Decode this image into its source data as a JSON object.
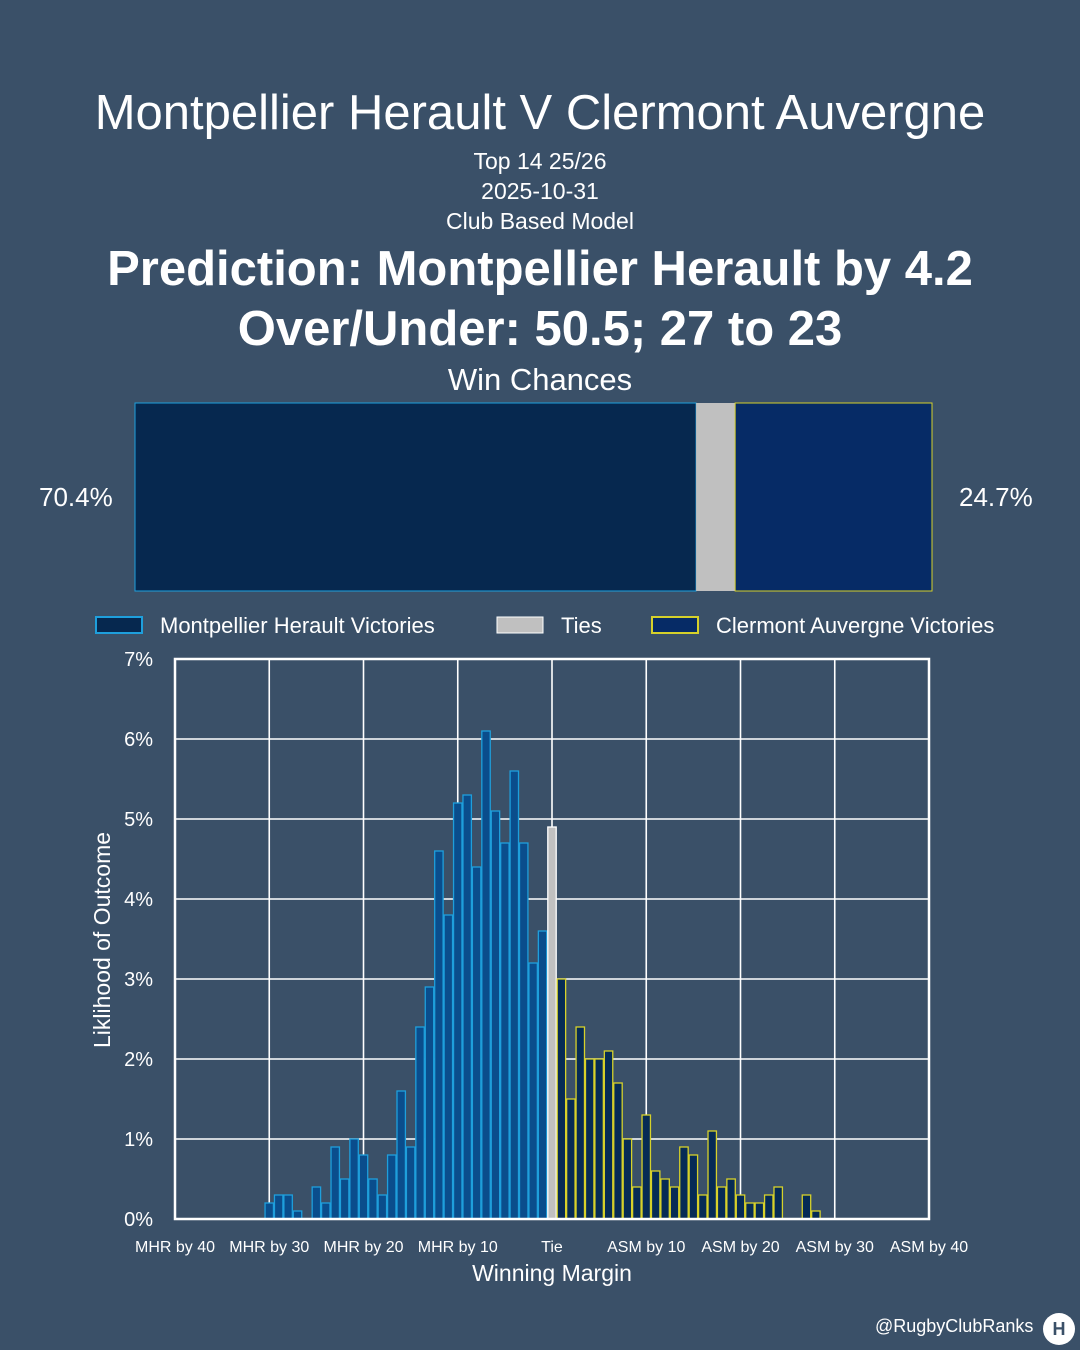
{
  "header": {
    "title": "Montpellier Herault V Clermont Auvergne",
    "competition": "Top 14 25/26",
    "date": "2025-10-31",
    "model": "Club Based Model",
    "prediction": "Prediction: Montpellier Herault by 4.2",
    "over_under": "Over/Under: 50.5; 27 to 23"
  },
  "win_chances": {
    "title": "Win Chances",
    "home_pct_label": "70.4%",
    "away_pct_label": "24.7%",
    "home": 70.4,
    "tie": 4.9,
    "away": 24.7
  },
  "colors": {
    "background": "#3a5068",
    "home_fill": "#06284f",
    "home_hist": "#0a4d8c",
    "home_edge": "#1e9fdc",
    "tie": "#c0c0c0",
    "away_fill": "#062b66",
    "away_hist": "#062b55",
    "away_edge": "#d6d12a"
  },
  "legend": {
    "home": "Montpellier Herault Victories",
    "tie": "Ties",
    "away": "Clermont Auvergne Victories"
  },
  "chart_data": {
    "type": "bar",
    "xlabel": "Winning Margin",
    "ylabel": "Liklihood of Outcome",
    "xlim": [
      -40,
      40
    ],
    "ylim": [
      0,
      7
    ],
    "x_ticks": [
      -40,
      -30,
      -20,
      -10,
      0,
      10,
      20,
      30,
      40
    ],
    "x_tick_labels": [
      "MHR by 40",
      "MHR by 30",
      "MHR by 20",
      "MHR by 10",
      "Tie",
      "ASM by 10",
      "ASM by 20",
      "ASM by 30",
      "ASM by 40"
    ],
    "y_ticks": [
      0,
      1,
      2,
      3,
      4,
      5,
      6,
      7
    ],
    "y_tick_labels": [
      "0%",
      "1%",
      "2%",
      "3%",
      "4%",
      "5%",
      "6%",
      "7%"
    ],
    "grid": true,
    "legend_position": "top",
    "series": [
      {
        "name": "Montpellier Herault Victories",
        "x": [
          -30,
          -29,
          -28,
          -27,
          -26,
          -25,
          -24,
          -23,
          -22,
          -21,
          -20,
          -19,
          -18,
          -17,
          -16,
          -15,
          -14,
          -13,
          -12,
          -11,
          -10,
          -9,
          -8,
          -7,
          -6,
          -5,
          -4,
          -3,
          -2,
          -1
        ],
        "values": [
          0.2,
          0.3,
          0.3,
          0.1,
          0.0,
          0.4,
          0.2,
          0.9,
          0.5,
          1.0,
          0.8,
          0.5,
          0.3,
          0.8,
          1.6,
          0.9,
          2.4,
          2.9,
          4.6,
          3.8,
          5.2,
          5.3,
          4.4,
          6.1,
          5.1,
          4.7,
          5.6,
          4.7,
          3.2,
          3.6
        ]
      },
      {
        "name": "Ties",
        "x": [
          0
        ],
        "values": [
          4.9
        ]
      },
      {
        "name": "Clermont Auvergne Victories",
        "x": [
          1,
          2,
          3,
          4,
          5,
          6,
          7,
          8,
          9,
          10,
          11,
          12,
          13,
          14,
          15,
          16,
          17,
          18,
          19,
          20,
          21,
          22,
          23,
          24,
          25,
          26,
          27,
          28,
          29,
          30
        ],
        "values": [
          3.0,
          1.5,
          2.4,
          2.0,
          2.0,
          2.1,
          1.7,
          1.0,
          0.4,
          1.3,
          0.6,
          0.5,
          0.4,
          0.9,
          0.8,
          0.3,
          1.1,
          0.4,
          0.5,
          0.3,
          0.2,
          0.2,
          0.3,
          0.4,
          0.0,
          0.0,
          0.3,
          0.1,
          0.0,
          0.0
        ]
      }
    ]
  },
  "footer": {
    "handle": "@RugbyClubRanks",
    "logo_glyph": "H"
  }
}
